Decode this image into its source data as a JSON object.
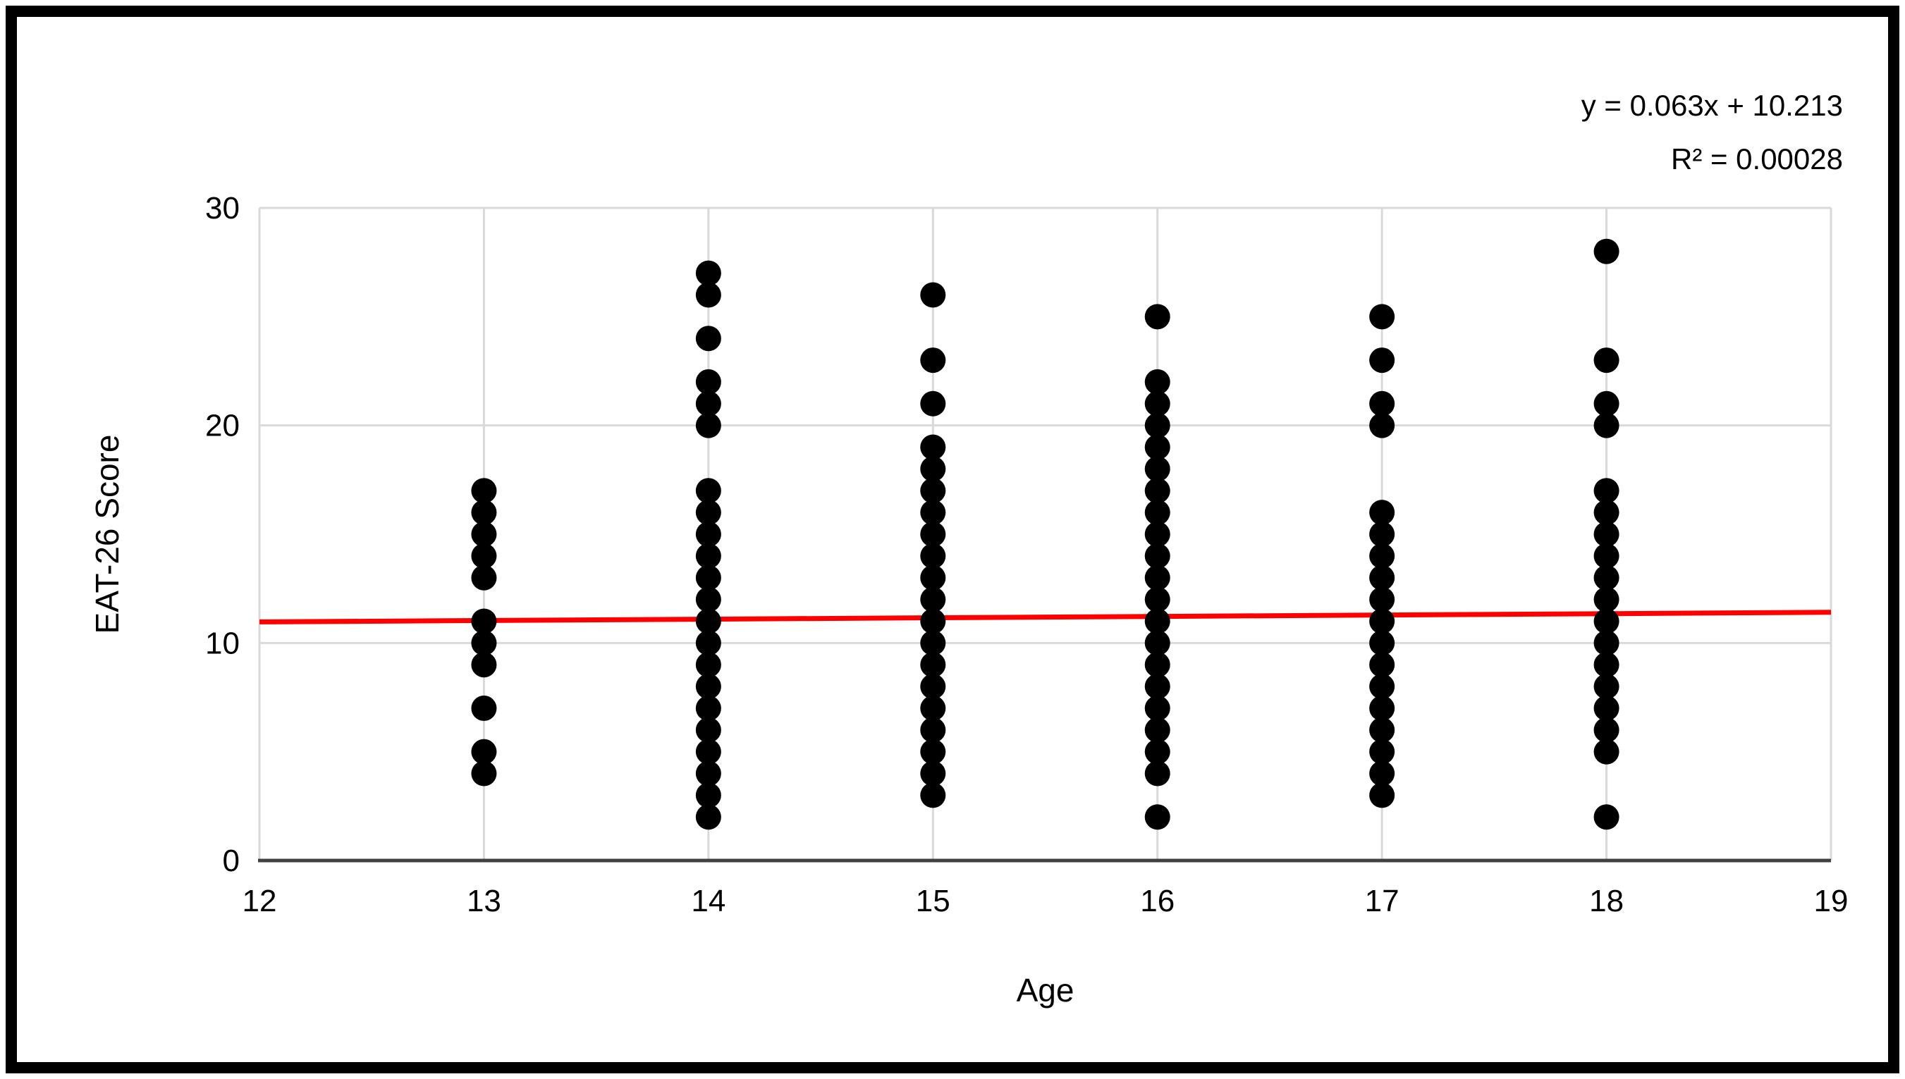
{
  "annotations": {
    "equation": "y = 0.063x + 10.213",
    "r_squared": "R² = 0.00028"
  },
  "chart_data": {
    "type": "scatter",
    "title": "",
    "xlabel": "Age",
    "ylabel": "EAT-26 Score",
    "xlim": [
      12,
      19
    ],
    "ylim": [
      0,
      30
    ],
    "x_ticks": [
      12,
      13,
      14,
      15,
      16,
      17,
      18,
      19
    ],
    "y_ticks": [
      0,
      10,
      20,
      30
    ],
    "grid": true,
    "legend_position": "none",
    "marker": {
      "shape": "circle",
      "color": "#000000"
    },
    "colors": {
      "gridline": "#d9d9d9",
      "axis_line": "#404040",
      "frame": "#000000",
      "text": "#000000"
    },
    "points_by_age": [
      {
        "age": 13,
        "scores": [
          17,
          16,
          15,
          14,
          13,
          11,
          10,
          9,
          7,
          5,
          4
        ]
      },
      {
        "age": 14,
        "scores": [
          27,
          26,
          24,
          22,
          21,
          20,
          17,
          16,
          15,
          14,
          13,
          12,
          11,
          10,
          9,
          8,
          7,
          6,
          5,
          4,
          3,
          2
        ]
      },
      {
        "age": 15,
        "scores": [
          26,
          23,
          21,
          19,
          18,
          17,
          16,
          15,
          14,
          13,
          12,
          11,
          10,
          9,
          8,
          7,
          6,
          5,
          4,
          3
        ]
      },
      {
        "age": 16,
        "scores": [
          25,
          22,
          21,
          20,
          19,
          18,
          17,
          16,
          15,
          14,
          13,
          12,
          11,
          10,
          9,
          8,
          7,
          6,
          5,
          4,
          2
        ]
      },
      {
        "age": 17,
        "scores": [
          25,
          23,
          21,
          20,
          16,
          15,
          14,
          13,
          12,
          11,
          10,
          9,
          8,
          7,
          6,
          5,
          4,
          3
        ]
      },
      {
        "age": 18,
        "scores": [
          28,
          23,
          21,
          20,
          17,
          16,
          15,
          14,
          13,
          12,
          11,
          10,
          9,
          8,
          7,
          6,
          5,
          2
        ]
      }
    ],
    "trendline": {
      "slope": 0.063,
      "intercept": 10.213,
      "r2": 0.00028,
      "x_start": 12,
      "x_end": 19,
      "color": "#ff0000",
      "equation_label": "y = 0.063x + 10.213",
      "r2_label": "R² = 0.00028"
    }
  }
}
